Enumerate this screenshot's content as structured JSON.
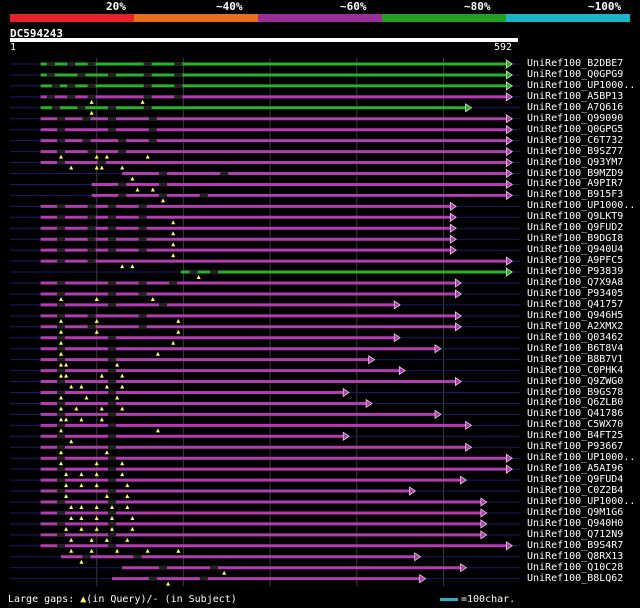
{
  "legend": {
    "labels": [
      "20%",
      "~40%",
      "~60%",
      "~80%",
      "~100%"
    ],
    "colors": [
      "#e8202a",
      "#e8701a",
      "#9b2e9b",
      "#22a022",
      "#1ab5c7"
    ]
  },
  "query": {
    "id": "DC594243",
    "start": "1",
    "end": "592"
  },
  "palette": {
    "purple": "#b33cb3",
    "green": "#29b229",
    "dark": "#1a1a6a",
    "tri": "#ffff66"
  },
  "hits": [
    {
      "label": "UniRef100_B2DBE7",
      "color": "green",
      "start": 0.06,
      "end": 0.985,
      "gaps": [
        0.08,
        0.12,
        0.16,
        0.27,
        0.33
      ]
    },
    {
      "label": "UniRef100_Q0GPG9",
      "color": "green",
      "start": 0.06,
      "end": 0.985,
      "gaps": [
        0.08,
        0.14,
        0.2,
        0.27,
        0.33
      ]
    },
    {
      "label": "UniRef100_UP1000..",
      "color": "green",
      "start": 0.06,
      "end": 0.985,
      "gaps": [
        0.09,
        0.12,
        0.16,
        0.27,
        0.33
      ]
    },
    {
      "label": "UniRef100_A5BP13",
      "color": "purple",
      "start": 0.06,
      "end": 0.985,
      "gaps": [
        0.08,
        0.12,
        0.16,
        0.27,
        0.33
      ],
      "tris": [
        0.16,
        0.26
      ]
    },
    {
      "label": "UniRef100_A7Q616",
      "color": "green",
      "start": 0.06,
      "end": 0.905,
      "gaps": [
        0.09,
        0.14,
        0.2,
        0.27
      ],
      "tris": [
        0.16
      ]
    },
    {
      "label": "UniRef100_Q99090",
      "color": "purple",
      "start": 0.06,
      "end": 0.985,
      "gaps": [
        0.1,
        0.15,
        0.2,
        0.28
      ]
    },
    {
      "label": "UniRef100_Q0GPG5",
      "color": "purple",
      "start": 0.06,
      "end": 0.985,
      "gaps": [
        0.1,
        0.2,
        0.28
      ]
    },
    {
      "label": "UniRef100_C6T732",
      "color": "purple",
      "start": 0.06,
      "end": 0.985,
      "gaps": [
        0.1,
        0.15,
        0.22,
        0.28
      ]
    },
    {
      "label": "UniRef100_B9SZ77",
      "color": "purple",
      "start": 0.06,
      "end": 0.985,
      "gaps": [
        0.1,
        0.16,
        0.22
      ],
      "tris": [
        0.1,
        0.17,
        0.19,
        0.27
      ]
    },
    {
      "label": "UniRef100_Q93YM7",
      "color": "purple",
      "start": 0.06,
      "end": 0.985,
      "gaps": [
        0.1,
        0.18
      ],
      "tris": [
        0.12,
        0.17,
        0.18,
        0.22
      ]
    },
    {
      "label": "UniRef100_B9MZD9",
      "color": "purple",
      "start": 0.22,
      "end": 0.985,
      "gaps": [
        0.3,
        0.42
      ],
      "tris": [
        0.24
      ]
    },
    {
      "label": "UniRef100_A9PIR7",
      "color": "purple",
      "start": 0.16,
      "end": 0.985,
      "gaps": [
        0.22,
        0.3
      ],
      "tris": [
        0.25,
        0.28
      ]
    },
    {
      "label": "UniRef100_B915F3",
      "color": "purple",
      "start": 0.16,
      "end": 0.985,
      "gaps": [
        0.22,
        0.3,
        0.38
      ],
      "tris": [
        0.3
      ]
    },
    {
      "label": "UniRef100_UP1000..",
      "color": "purple",
      "start": 0.06,
      "end": 0.875,
      "gaps": [
        0.1,
        0.16,
        0.2,
        0.26
      ]
    },
    {
      "label": "UniRef100_Q9LKT9",
      "color": "purple",
      "start": 0.06,
      "end": 0.875,
      "gaps": [
        0.1,
        0.16,
        0.2,
        0.26
      ],
      "tris": [
        0.32
      ]
    },
    {
      "label": "UniRef100_Q9FUD2",
      "color": "purple",
      "start": 0.06,
      "end": 0.875,
      "gaps": [
        0.1,
        0.16,
        0.2,
        0.26
      ],
      "tris": [
        0.32
      ]
    },
    {
      "label": "UniRef100_B9DGI8",
      "color": "purple",
      "start": 0.06,
      "end": 0.875,
      "gaps": [
        0.1,
        0.16,
        0.2,
        0.26
      ],
      "tris": [
        0.32
      ]
    },
    {
      "label": "UniRef100_Q940U4",
      "color": "purple",
      "start": 0.06,
      "end": 0.875,
      "gaps": [
        0.1,
        0.16,
        0.2,
        0.26
      ],
      "tris": [
        0.32
      ]
    },
    {
      "label": "UniRef100_A9PFC5",
      "color": "purple",
      "start": 0.06,
      "end": 0.985,
      "gaps": [
        0.1,
        0.16
      ],
      "tris": [
        0.22,
        0.24
      ]
    },
    {
      "label": "UniRef100_P93839",
      "color": "green",
      "start": 0.335,
      "end": 0.985,
      "gaps": [
        0.36,
        0.4
      ],
      "tris": [
        0.37
      ]
    },
    {
      "label": "UniRef100_Q7X9A8",
      "color": "purple",
      "start": 0.06,
      "end": 0.885,
      "gaps": [
        0.1,
        0.2,
        0.26,
        0.32
      ]
    },
    {
      "label": "UniRef100_P93405",
      "color": "purple",
      "start": 0.06,
      "end": 0.885,
      "gaps": [
        0.1,
        0.2,
        0.26
      ],
      "tris": [
        0.1,
        0.17,
        0.28
      ]
    },
    {
      "label": "UniRef100_Q41757",
      "color": "purple",
      "start": 0.06,
      "end": 0.765,
      "gaps": [
        0.1,
        0.2,
        0.3
      ]
    },
    {
      "label": "UniRef100_Q946H5",
      "color": "purple",
      "start": 0.06,
      "end": 0.885,
      "gaps": [
        0.1,
        0.16,
        0.26
      ],
      "tris": [
        0.1,
        0.17,
        0.33
      ]
    },
    {
      "label": "UniRef100_A2XMX2",
      "color": "purple",
      "start": 0.06,
      "end": 0.885,
      "gaps": [
        0.1,
        0.16,
        0.26
      ],
      "tris": [
        0.1,
        0.17,
        0.33
      ]
    },
    {
      "label": "UniRef100_Q03462",
      "color": "purple",
      "start": 0.06,
      "end": 0.765,
      "gaps": [
        0.1,
        0.2
      ],
      "tris": [
        0.1,
        0.32
      ]
    },
    {
      "label": "UniRef100_B6T8V4",
      "color": "purple",
      "start": 0.06,
      "end": 0.845,
      "gaps": [
        0.1,
        0.2
      ],
      "tris": [
        0.1,
        0.29
      ]
    },
    {
      "label": "UniRef100_B8B7V1",
      "color": "purple",
      "start": 0.06,
      "end": 0.715,
      "gaps": [
        0.1,
        0.2
      ],
      "tris": [
        0.1,
        0.11,
        0.21
      ]
    },
    {
      "label": "UniRef100_C0PHK4",
      "color": "purple",
      "start": 0.06,
      "end": 0.775,
      "gaps": [
        0.1,
        0.2
      ],
      "tris": [
        0.1,
        0.11,
        0.18,
        0.22
      ]
    },
    {
      "label": "UniRef100_Q9ZWG0",
      "color": "purple",
      "start": 0.06,
      "end": 0.885,
      "gaps": [
        0.1,
        0.2
      ],
      "tris": [
        0.12,
        0.14,
        0.19,
        0.22
      ]
    },
    {
      "label": "UniRef100_B9GS78",
      "color": "purple",
      "start": 0.06,
      "end": 0.665,
      "gaps": [
        0.1,
        0.2
      ],
      "tris": [
        0.1,
        0.15,
        0.21
      ]
    },
    {
      "label": "UniRef100_Q6ZLB0",
      "color": "purple",
      "start": 0.06,
      "end": 0.71,
      "gaps": [
        0.1,
        0.2
      ],
      "tris": [
        0.1,
        0.13,
        0.18,
        0.22
      ]
    },
    {
      "label": "UniRef100_Q41786",
      "color": "purple",
      "start": 0.06,
      "end": 0.845,
      "gaps": [
        0.1,
        0.2
      ],
      "tris": [
        0.1,
        0.11,
        0.14,
        0.18
      ]
    },
    {
      "label": "UniRef100_C5WX70",
      "color": "purple",
      "start": 0.06,
      "end": 0.905,
      "gaps": [
        0.1,
        0.2
      ],
      "tris": [
        0.1,
        0.29
      ]
    },
    {
      "label": "UniRef100_B4FT25",
      "color": "purple",
      "start": 0.06,
      "end": 0.665,
      "gaps": [
        0.1,
        0.2
      ],
      "tris": [
        0.12
      ]
    },
    {
      "label": "UniRef100_P93667",
      "color": "purple",
      "start": 0.06,
      "end": 0.905,
      "gaps": [
        0.1,
        0.2
      ],
      "tris": [
        0.1,
        0.19
      ]
    },
    {
      "label": "UniRef100_UP1000..",
      "color": "purple",
      "start": 0.06,
      "end": 0.985,
      "gaps": [
        0.1,
        0.2
      ],
      "tris": [
        0.1,
        0.17,
        0.22
      ]
    },
    {
      "label": "UniRef100_A5AI96",
      "color": "purple",
      "start": 0.06,
      "end": 0.985,
      "gaps": [
        0.1,
        0.2
      ],
      "tris": [
        0.11,
        0.14,
        0.17,
        0.22
      ]
    },
    {
      "label": "UniRef100_Q9FUD4",
      "color": "purple",
      "start": 0.06,
      "end": 0.895,
      "gaps": [
        0.1,
        0.2
      ],
      "tris": [
        0.11,
        0.14,
        0.17,
        0.23
      ]
    },
    {
      "label": "UniRef100_C0Z2B4",
      "color": "purple",
      "start": 0.06,
      "end": 0.795,
      "gaps": [
        0.1,
        0.2
      ],
      "tris": [
        0.11,
        0.19,
        0.23
      ]
    },
    {
      "label": "UniRef100_UP1000..",
      "color": "purple",
      "start": 0.06,
      "end": 0.935,
      "gaps": [
        0.1,
        0.2
      ],
      "tris": [
        0.12,
        0.14,
        0.17,
        0.2,
        0.23
      ]
    },
    {
      "label": "UniRef100_Q9M1G6",
      "color": "purple",
      "start": 0.06,
      "end": 0.935,
      "gaps": [
        0.1,
        0.2
      ],
      "tris": [
        0.12,
        0.14,
        0.17,
        0.2,
        0.24
      ]
    },
    {
      "label": "UniRef100_Q940H0",
      "color": "purple",
      "start": 0.06,
      "end": 0.935,
      "gaps": [
        0.1,
        0.2
      ],
      "tris": [
        0.11,
        0.14,
        0.17,
        0.2,
        0.24
      ]
    },
    {
      "label": "UniRef100_Q712N9",
      "color": "purple",
      "start": 0.06,
      "end": 0.935,
      "gaps": [
        0.1,
        0.2
      ],
      "tris": [
        0.12,
        0.16,
        0.19,
        0.23
      ]
    },
    {
      "label": "UniRef100_B9S4R7",
      "color": "purple",
      "start": 0.06,
      "end": 0.985,
      "gaps": [
        0.1,
        0.2
      ],
      "tris": [
        0.12,
        0.16,
        0.21,
        0.27,
        0.33
      ]
    },
    {
      "label": "UniRef100_Q8RX13",
      "color": "purple",
      "start": 0.1,
      "end": 0.805,
      "gaps": [
        0.15,
        0.25
      ],
      "tris": [
        0.14
      ]
    },
    {
      "label": "UniRef100_Q10C28",
      "color": "purple",
      "start": 0.22,
      "end": 0.895,
      "gaps": [
        0.3,
        0.4
      ],
      "tris": [
        0.42
      ]
    },
    {
      "label": "UniRef100_B8LQ62",
      "color": "purple",
      "start": 0.2,
      "end": 0.815,
      "gaps": [
        0.28,
        0.38
      ],
      "tris": [
        0.31
      ]
    }
  ],
  "footer": {
    "left_prefix": "Large gaps: ",
    "tri": "▲",
    "left_suffix": "(in Query)/- (in Subject)",
    "right": "=100char."
  }
}
